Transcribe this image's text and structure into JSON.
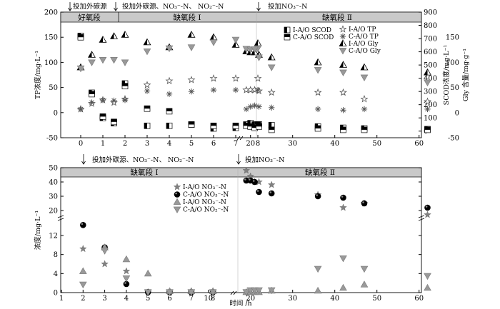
{
  "chart_data": [
    {
      "type": "scatter",
      "ylabel": "TP浓度/mg·L⁻¹",
      "ylabel_right_1": "SCOD浓度/mg·L⁻¹",
      "ylabel_right_2": "Gly 含量/mg·g⁻¹",
      "xlim": [
        -3,
        65
      ],
      "ylim": [
        -50,
        200
      ],
      "ylim_right": [
        -50,
        900
      ],
      "xticks": [
        "0",
        "10",
        "20",
        "30",
        "40",
        "50",
        "60"
      ],
      "yticks_left": [
        "-50",
        "0",
        "50",
        "100",
        "150",
        "200"
      ],
      "yticks_right_scod": [
        "0",
        "100",
        "200",
        "300",
        "400",
        "500",
        "600",
        "700",
        "800",
        "900"
      ],
      "yticks_right_gly": [
        "-50",
        "0",
        "50",
        "100",
        "150"
      ],
      "x_ticks_brk": [
        "0",
        "1",
        "2",
        "3",
        "4",
        "5",
        "6",
        "7",
        "8"
      ],
      "x_ticks_main": [
        "20",
        "30",
        "40",
        "50",
        "60"
      ],
      "stages": [
        "好氧段",
        "缺氧段 Ⅰ",
        "缺氧段 Ⅱ"
      ],
      "annotations": [
        "投加外碳源",
        "投加外碳源、NO₃⁻-N、 NO₂⁻-N",
        "投加NO₃⁻-N"
      ],
      "legend": [
        "I-A/O SCOD",
        "C-A/O SCOD",
        "I-A/O TP",
        "C-A/O TP",
        "I-A/O Gly",
        "C-A/O Gly"
      ],
      "series": [
        {
          "name": "I-A/O SCOD",
          "axis": "scod",
          "x": [
            0,
            0.5,
            1,
            1.5,
            2,
            3,
            4,
            5,
            6,
            7,
            8,
            19,
            20,
            21,
            22,
            25,
            36,
            42,
            47,
            62
          ],
          "y": [
            720,
            290,
            100,
            60,
            360,
            40,
            40,
            50,
            20,
            25,
            40,
            50,
            60,
            50,
            50,
            45,
            35,
            25,
            20,
            15
          ]
        },
        {
          "name": "C-A/O SCOD",
          "axis": "scod",
          "x": [
            0,
            0.5,
            1,
            1.5,
            2,
            3,
            4,
            5,
            6,
            7,
            8,
            19,
            20,
            21,
            22,
            25,
            36,
            42,
            47,
            62
          ],
          "y": [
            710,
            280,
            110,
            70,
            340,
            170,
            150,
            50,
            40,
            40,
            50,
            40,
            35,
            25,
            35,
            10,
            20,
            10,
            10,
            10
          ]
        },
        {
          "name": "I-A/O TP",
          "x": [
            0,
            0.5,
            1,
            1.5,
            2,
            3,
            4,
            5,
            6,
            7,
            8,
            19,
            20,
            21,
            22,
            25,
            36,
            42,
            47,
            62
          ],
          "y": [
            7,
            18,
            25,
            20,
            27,
            55,
            63,
            65,
            68,
            68,
            68,
            45,
            45,
            45,
            43,
            40,
            40,
            40,
            27,
            22
          ]
        },
        {
          "name": "C-A/O TP",
          "x": [
            0,
            0.5,
            1,
            1.5,
            2,
            3,
            4,
            5,
            6,
            7,
            8,
            19,
            20,
            21,
            22,
            25,
            36,
            42,
            47,
            62
          ],
          "y": [
            7,
            20,
            25,
            24,
            25,
            43,
            37,
            42,
            45,
            45,
            45,
            7,
            12,
            14,
            12,
            10,
            7,
            5,
            7,
            7
          ]
        },
        {
          "name": "I-A/O Gly",
          "x": [
            0,
            0.5,
            1,
            1.5,
            2,
            3,
            4,
            5,
            6,
            7,
            8,
            19,
            20,
            21,
            22,
            25,
            36,
            42,
            47,
            62
          ],
          "y": [
            90,
            115,
            145,
            152,
            155,
            140,
            130,
            155,
            150,
            135,
            138,
            122,
            120,
            120,
            115,
            110,
            100,
            95,
            90,
            80
          ]
        },
        {
          "name": "C-A/O Gly",
          "x": [
            0,
            0.5,
            1,
            1.5,
            2,
            3,
            4,
            5,
            6,
            7,
            8,
            19,
            20,
            21,
            22,
            25,
            36,
            42,
            47,
            62
          ],
          "y": [
            88,
            100,
            105,
            105,
            100,
            122,
            128,
            130,
            140,
            145,
            128,
            127,
            126,
            126,
            110,
            90,
            85,
            80,
            70,
            60
          ]
        }
      ]
    },
    {
      "type": "scatter",
      "xlabel": "时间 /h",
      "ylabel": "浓度/mg·L⁻¹",
      "xlim": [
        1,
        64
      ],
      "ylim": [
        0,
        50
      ],
      "xticks": [
        "1",
        "2",
        "3",
        "4",
        "5",
        "6",
        "7",
        "8",
        "10",
        "20",
        "30",
        "40",
        "50",
        "60"
      ],
      "yticks": [
        "0",
        "4",
        "8",
        "12",
        "20",
        "30",
        "40",
        "50"
      ],
      "stages": [
        "缺氧段 Ⅰ",
        "缺氧段 Ⅱ"
      ],
      "annotations": [
        "投加外碳源、NO₃⁻-N、 NO₂⁻-N",
        "投加NO₃⁻-N"
      ],
      "legend": [
        "I-A/O NO₃⁻-N",
        "C-A/O NO₃⁻-N",
        "I-A/O NO₂⁻-N",
        "C-A/O NO₂⁻-N"
      ],
      "series": [
        {
          "name": "I-A/O NO₃⁻-N",
          "x": [
            2,
            3,
            4,
            5,
            6,
            7,
            8,
            19,
            20,
            21,
            22,
            25,
            36,
            42,
            47,
            62
          ],
          "y": [
            9.2,
            6,
            4.5,
            0.1,
            0.1,
            0.1,
            0.1,
            48,
            44,
            40,
            40,
            38,
            31,
            22,
            25,
            17
          ]
        },
        {
          "name": "C-A/O NO₃⁻-N",
          "x": [
            2,
            3,
            4,
            5,
            6,
            7,
            8,
            19,
            20,
            21,
            22,
            25,
            36,
            42,
            47,
            62
          ],
          "y": [
            14.2,
            9.5,
            1.8,
            0.1,
            0.1,
            0.1,
            0.1,
            41,
            41,
            40,
            33,
            32,
            30,
            29,
            25,
            22
          ]
        },
        {
          "name": "I-A/O NO₂⁻-N",
          "x": [
            2,
            3,
            4,
            5,
            6,
            7,
            8,
            19,
            20,
            21,
            22,
            25,
            36,
            42,
            47,
            62
          ],
          "y": [
            4.5,
            9.5,
            7,
            4,
            0.3,
            0.3,
            0.3,
            0.1,
            0.1,
            0.1,
            0.1,
            0.4,
            0.4,
            1,
            1.7,
            1
          ]
        },
        {
          "name": "C-A/O NO₂⁻-N",
          "x": [
            2,
            3,
            4,
            5,
            6,
            7,
            8,
            19,
            20,
            21,
            22,
            25,
            36,
            42,
            47,
            62
          ],
          "y": [
            1.7,
            8.8,
            3,
            0.1,
            0.1,
            0.1,
            0.1,
            0.1,
            0.5,
            0.5,
            0.5,
            0.5,
            5,
            7.2,
            5,
            3.5
          ]
        }
      ]
    }
  ]
}
